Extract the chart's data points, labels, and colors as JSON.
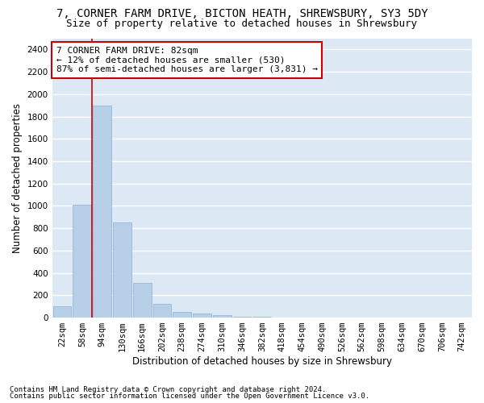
{
  "title_line1": "7, CORNER FARM DRIVE, BICTON HEATH, SHREWSBURY, SY3 5DY",
  "title_line2": "Size of property relative to detached houses in Shrewsbury",
  "xlabel": "Distribution of detached houses by size in Shrewsbury",
  "ylabel": "Number of detached properties",
  "bar_labels": [
    "22sqm",
    "58sqm",
    "94sqm",
    "130sqm",
    "166sqm",
    "202sqm",
    "238sqm",
    "274sqm",
    "310sqm",
    "346sqm",
    "382sqm",
    "418sqm",
    "454sqm",
    "490sqm",
    "526sqm",
    "562sqm",
    "598sqm",
    "634sqm",
    "670sqm",
    "706sqm",
    "742sqm"
  ],
  "bar_values": [
    100,
    1010,
    1900,
    855,
    310,
    120,
    50,
    35,
    20,
    10,
    5,
    3,
    2,
    1,
    1,
    1,
    0,
    0,
    0,
    0,
    0
  ],
  "bar_color": "#b8cfe8",
  "bar_edge_color": "#8ab0d8",
  "background_color": "#dde8f5",
  "grid_color": "#ffffff",
  "marker_line_color": "#cc0000",
  "annotation_text": "7 CORNER FARM DRIVE: 82sqm\n← 12% of detached houses are smaller (530)\n87% of semi-detached houses are larger (3,831) →",
  "annotation_box_color": "#ffffff",
  "annotation_box_edge": "#cc0000",
  "footnote1": "Contains HM Land Registry data © Crown copyright and database right 2024.",
  "footnote2": "Contains public sector information licensed under the Open Government Licence v3.0.",
  "ylim": [
    0,
    2500
  ],
  "yticks": [
    0,
    200,
    400,
    600,
    800,
    1000,
    1200,
    1400,
    1600,
    1800,
    2000,
    2200,
    2400
  ],
  "title_fontsize": 10,
  "subtitle_fontsize": 9,
  "axis_label_fontsize": 8.5,
  "tick_fontsize": 7.5,
  "annotation_fontsize": 8,
  "footnote_fontsize": 6.5
}
